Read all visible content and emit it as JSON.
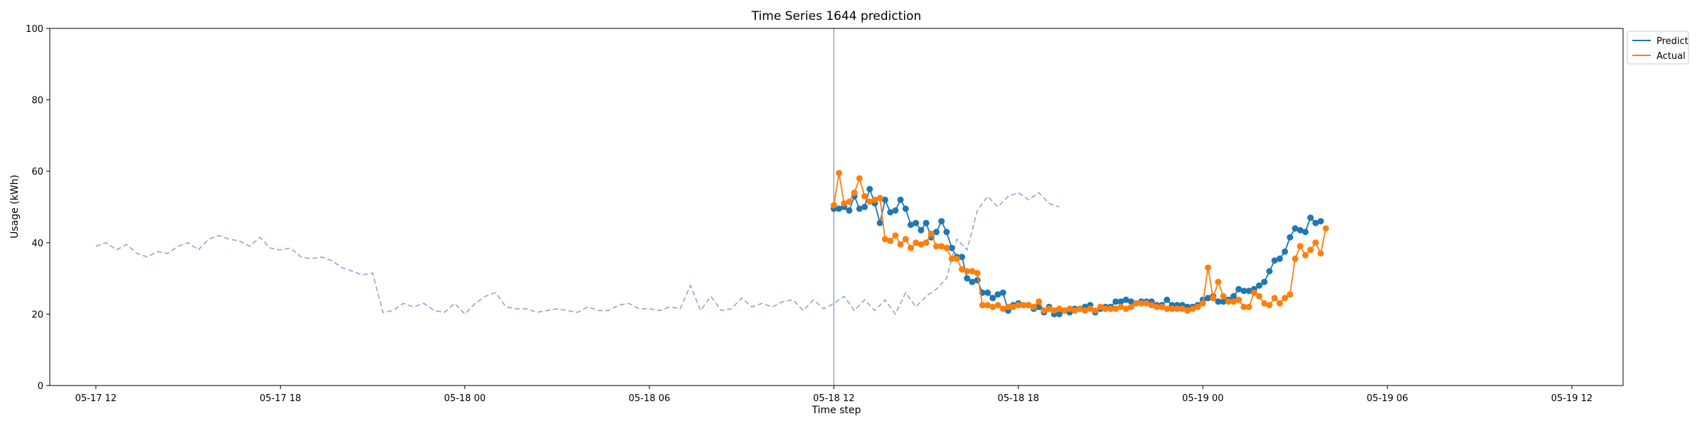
{
  "chart_data": {
    "type": "line",
    "title": "Time Series 1644 prediction",
    "xlabel": "Time step",
    "ylabel": "Usage (kWh)",
    "ylim": [
      0,
      100
    ],
    "xlim": [
      "2023-05-17 10:30",
      "2023-05-19 13:40"
    ],
    "yticks": [
      0,
      20,
      40,
      60,
      80,
      100
    ],
    "xticks": [
      {
        "t": "2023-05-17 12:00",
        "label": "05-17 12"
      },
      {
        "t": "2023-05-17 18:00",
        "label": "05-17 18"
      },
      {
        "t": "2023-05-18 00:00",
        "label": "05-18 00"
      },
      {
        "t": "2023-05-18 06:00",
        "label": "05-18 06"
      },
      {
        "t": "2023-05-18 12:00",
        "label": "05-18 12"
      },
      {
        "t": "2023-05-18 18:00",
        "label": "05-18 18"
      },
      {
        "t": "2023-05-19 00:00",
        "label": "05-19 00"
      },
      {
        "t": "2023-05-19 06:00",
        "label": "05-19 06"
      },
      {
        "t": "2023-05-19 12:00",
        "label": "05-19 12"
      }
    ],
    "grid": false,
    "legend": "outside top-right",
    "vline": {
      "t": "2023-05-18 12:00",
      "color": "#8090c8"
    },
    "history": {
      "color": "#8fa8cc",
      "style": "dashed",
      "x_start": "2023-05-17 12:00",
      "step_minutes": 20,
      "values": [
        39,
        40,
        38,
        39.5,
        37,
        36,
        37.5,
        37,
        39,
        40,
        38,
        41,
        42,
        41,
        40.5,
        39,
        41.5,
        38.5,
        38,
        38.5,
        36,
        35.5,
        36,
        35,
        33,
        32,
        31,
        31.5,
        20.5,
        21,
        23,
        22,
        23,
        21,
        20.5,
        23,
        20,
        23,
        25,
        26,
        22,
        21.5,
        21.5,
        20.5,
        21,
        21.5,
        21,
        20.5,
        22,
        21,
        21,
        22.5,
        23,
        21.5,
        21.5,
        21,
        22,
        21.5,
        28,
        21,
        25,
        21,
        21.5,
        24.5,
        22,
        23,
        22,
        23.5,
        24,
        21,
        24,
        21.5,
        23,
        25,
        21,
        24,
        21,
        24,
        20,
        26,
        22,
        25,
        27,
        30,
        41,
        38,
        49,
        53,
        50,
        53,
        54,
        52,
        54,
        51,
        50
      ]
    },
    "x_start": "2023-05-18 12:00",
    "step_minutes": 10,
    "series": [
      {
        "name": "Predict",
        "color": "#1f77b4",
        "values": [
          49.5,
          49.5,
          50,
          49,
          53,
          49.5,
          50,
          55,
          51,
          45.5,
          52,
          48.5,
          49,
          52,
          49.5,
          45,
          45.5,
          43.5,
          45.5,
          41.5,
          43,
          46,
          43,
          38.5,
          36,
          36,
          30,
          29,
          29.5,
          26,
          26,
          24.5,
          25.5,
          26,
          21,
          22.5,
          23,
          22.5,
          22.5,
          21.5,
          22,
          20.5,
          22,
          20,
          20,
          21,
          20.5,
          21.5,
          21.5,
          22,
          22.5,
          20.5,
          21.5,
          22,
          22,
          23.5,
          23.5,
          24,
          23.5,
          23,
          23.5,
          23.5,
          23.5,
          22.5,
          22.5,
          24,
          22.5,
          22.5,
          22.5,
          22,
          22,
          22.5,
          24,
          24.5,
          25,
          23.5,
          23.5,
          24,
          25,
          27,
          26.5,
          26.5,
          27,
          28,
          29,
          32,
          35,
          35.5,
          37.5,
          41.5,
          44,
          43.5,
          43,
          47,
          45.5,
          46
        ]
      },
      {
        "name": "Actual",
        "color": "#ff7f0e",
        "values": [
          50.5,
          59.5,
          51,
          51.5,
          54,
          58,
          53,
          51.5,
          52,
          52.5,
          41,
          40.5,
          42,
          39.5,
          41,
          38.5,
          40,
          39.5,
          40,
          42.5,
          39,
          39,
          38.5,
          35.5,
          35.5,
          32.5,
          32,
          32,
          31.5,
          22.5,
          22.5,
          22,
          22.5,
          21.5,
          22,
          22,
          22.5,
          22.5,
          22.5,
          22,
          23.5,
          21,
          21.5,
          21,
          21.5,
          21,
          21.5,
          21,
          21.5,
          21,
          21.5,
          21,
          22,
          21.5,
          21.5,
          21.5,
          22,
          21.5,
          22,
          23,
          23,
          23,
          22.5,
          22,
          22,
          21.5,
          21.5,
          21.5,
          21.5,
          21,
          21.5,
          22,
          23,
          33,
          24.5,
          29,
          25,
          23.5,
          23.5,
          24,
          22,
          22,
          26,
          25,
          23,
          22.5,
          24.5,
          23,
          24.5,
          25.5,
          35.5,
          39,
          36.5,
          38,
          40,
          37,
          44
        ]
      }
    ]
  }
}
